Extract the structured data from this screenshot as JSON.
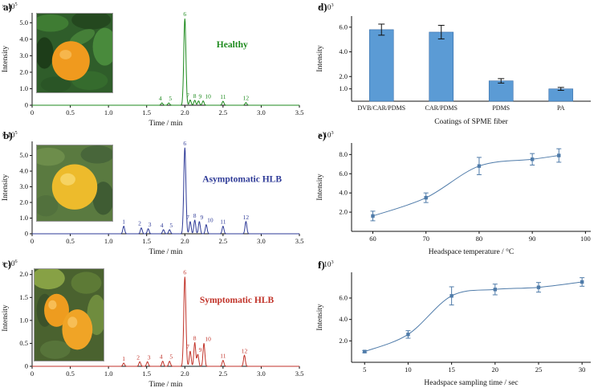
{
  "figure": {
    "background": "#ffffff",
    "panel_labels": {
      "a": "a)",
      "b": "b)",
      "c": "c)",
      "d": "d)",
      "e": "e)",
      "f": "f)"
    }
  },
  "photos": {
    "a": "healthy citrus fruit on tree",
    "b": "asymptomatic HLB citrus fruit",
    "c": "symptomatic HLB citrus fruits"
  },
  "chart_data": [
    {
      "id": "a",
      "type": "line",
      "kind": "chromatogram",
      "annotation": {
        "text": "Healthy",
        "x": 2.62,
        "y": 3.5
      },
      "color": "#1d8a1d",
      "exponent": "× 10^5",
      "xlabel": "Time / min",
      "ylabel": "Intensity",
      "xlim": [
        0,
        3.5
      ],
      "ylim": [
        0,
        5.6
      ],
      "xticks": [
        0,
        0.5,
        1.0,
        1.5,
        2.0,
        2.5,
        3.0,
        3.5
      ],
      "yticks": [
        0,
        1.0,
        2.0,
        3.0,
        4.0,
        5.0
      ],
      "peaks": [
        {
          "label": "4",
          "t": 1.7,
          "h": 0.14,
          "dx": -2
        },
        {
          "label": "5",
          "t": 1.79,
          "h": 0.14,
          "dx": 2
        },
        {
          "label": "6",
          "t": 2.0,
          "h": 5.25,
          "w": 0.014
        },
        {
          "label": "7",
          "t": 2.07,
          "h": 0.32,
          "dx": -3
        },
        {
          "label": "8",
          "t": 2.13,
          "h": 0.3
        },
        {
          "label": "9",
          "t": 2.18,
          "h": 0.26,
          "dx": 2
        },
        {
          "label": "10",
          "t": 2.24,
          "h": 0.26,
          "dx": 6
        },
        {
          "label": "11",
          "t": 2.5,
          "h": 0.24
        },
        {
          "label": "12",
          "t": 2.8,
          "h": 0.16
        }
      ]
    },
    {
      "id": "b",
      "type": "line",
      "kind": "chromatogram",
      "annotation": {
        "text": "Asymptomatic HLB",
        "x": 2.75,
        "y": 3.3
      },
      "color": "#2e3a97",
      "exponent": "× 10^5",
      "xlabel": "Time / min",
      "ylabel": "Intensity",
      "xlim": [
        0,
        3.5
      ],
      "ylim": [
        0,
        5.9
      ],
      "xticks": [
        0,
        0.5,
        1.0,
        1.5,
        2.0,
        2.5,
        3.0,
        3.5
      ],
      "yticks": [
        0,
        1.0,
        2.0,
        3.0,
        4.0,
        5.0
      ],
      "peaks": [
        {
          "label": "1",
          "t": 1.2,
          "h": 0.48
        },
        {
          "label": "2",
          "t": 1.43,
          "h": 0.38,
          "dx": -2
        },
        {
          "label": "3",
          "t": 1.52,
          "h": 0.32,
          "dx": 2
        },
        {
          "label": "4",
          "t": 1.72,
          "h": 0.26,
          "dx": -2
        },
        {
          "label": "5",
          "t": 1.8,
          "h": 0.26,
          "dx": 2
        },
        {
          "label": "6",
          "t": 2.0,
          "h": 5.5,
          "w": 0.014
        },
        {
          "label": "7",
          "t": 2.07,
          "h": 0.78,
          "dx": -3
        },
        {
          "label": "8",
          "t": 2.13,
          "h": 0.88
        },
        {
          "label": "9",
          "t": 2.19,
          "h": 0.78,
          "dx": 3
        },
        {
          "label": "10",
          "t": 2.28,
          "h": 0.58,
          "dx": 5
        },
        {
          "label": "11",
          "t": 2.5,
          "h": 0.48
        },
        {
          "label": "12",
          "t": 2.8,
          "h": 0.78
        }
      ]
    },
    {
      "id": "c",
      "type": "line",
      "kind": "chromatogram",
      "annotation": {
        "text": "Symptomatic HLB",
        "x": 2.68,
        "y": 1.38
      },
      "color": "#c13228",
      "exponent": "× 10^6",
      "xlabel": "Time / min",
      "ylabel": "Intensity",
      "xlim": [
        0,
        3.5
      ],
      "ylim": [
        0,
        2.1
      ],
      "xticks": [
        0,
        0.5,
        1.0,
        1.5,
        2.0,
        2.5,
        3.0,
        3.5
      ],
      "yticks": [
        0,
        0.5,
        1.0,
        1.5,
        2.0
      ],
      "peaks": [
        {
          "label": "1",
          "t": 1.2,
          "h": 0.07
        },
        {
          "label": "2",
          "t": 1.41,
          "h": 0.1,
          "dx": -2
        },
        {
          "label": "3",
          "t": 1.51,
          "h": 0.1,
          "dx": 2
        },
        {
          "label": "4",
          "t": 1.71,
          "h": 0.11,
          "dx": -2
        },
        {
          "label": "5",
          "t": 1.8,
          "h": 0.11,
          "dx": 2
        },
        {
          "label": "6",
          "t": 2.0,
          "h": 1.95,
          "w": 0.014
        },
        {
          "label": "7",
          "t": 2.07,
          "h": 0.33,
          "dx": -3
        },
        {
          "label": "8",
          "t": 2.13,
          "h": 0.52
        },
        {
          "label": "9",
          "t": 2.17,
          "h": 0.26,
          "dx": 3
        },
        {
          "label": "10",
          "t": 2.25,
          "h": 0.5,
          "dx": 5
        },
        {
          "label": "11",
          "t": 2.5,
          "h": 0.13
        },
        {
          "label": "12",
          "t": 2.78,
          "h": 0.24
        }
      ]
    },
    {
      "id": "d",
      "type": "bar",
      "categories": [
        "DVB/CAR/PDMS",
        "CAR/PDMS",
        "PDMS",
        "PA"
      ],
      "values": [
        5.8,
        5.6,
        1.65,
        1.0
      ],
      "errors": [
        0.45,
        0.55,
        0.18,
        0.12
      ],
      "bar_color": "#5b9bd5",
      "exponent": "× 10^3",
      "xlabel": "Coatings of SPME fiber",
      "ylabel": "Intensity",
      "ylim": [
        0,
        6.9
      ],
      "yticks": [
        1.0,
        2.0,
        4.0,
        6.0
      ]
    },
    {
      "id": "e",
      "type": "scatter-line",
      "x": [
        60,
        70,
        80,
        90,
        95
      ],
      "y": [
        1.6,
        3.5,
        6.8,
        7.5,
        7.9
      ],
      "errors": [
        0.5,
        0.5,
        0.9,
        0.6,
        0.7
      ],
      "color": "#4f7ba9",
      "exponent": "× 10^3",
      "xlabel": "Headspace temperature / °C",
      "ylabel": "Intensity",
      "xlim": [
        56,
        101
      ],
      "ylim": [
        0,
        9.2
      ],
      "xticks": [
        60,
        70,
        80,
        90,
        100
      ],
      "yticks": [
        2.0,
        4.0,
        6.0,
        8.0
      ]
    },
    {
      "id": "f",
      "type": "scatter-line",
      "x": [
        5,
        10,
        15,
        20,
        25,
        30
      ],
      "y": [
        1.0,
        2.6,
        6.2,
        6.8,
        7.0,
        7.5
      ],
      "errors": [
        0.1,
        0.35,
        0.85,
        0.5,
        0.45,
        0.4
      ],
      "color": "#4f7ba9",
      "exponent": "× 10^3",
      "xlabel": "Headspace sampling time / sec",
      "ylabel": "Intensity",
      "xlim": [
        3.5,
        31
      ],
      "ylim": [
        0,
        8.4
      ],
      "xticks": [
        5,
        10,
        15,
        20,
        25,
        30
      ],
      "yticks": [
        2.0,
        4.0,
        6.0
      ]
    }
  ]
}
